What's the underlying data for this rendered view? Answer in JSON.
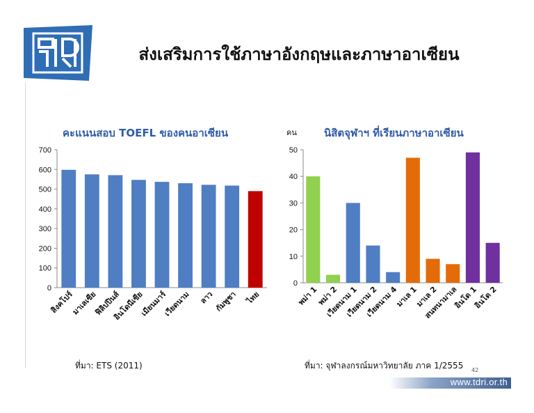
{
  "slide": {
    "title": "ส่งเสริมการใช้ภาษาอังกฤษและภาษาอาเซียน",
    "page_number": "42",
    "footer_url": "www.tdri.or.th",
    "logo_icon": "tdri-logo-icon"
  },
  "colors": {
    "blue": "#4f7ec2",
    "red": "#c00000",
    "green": "#92d050",
    "orange": "#e36c09",
    "purple": "#7030a0",
    "title_blue": "#2e5ba8"
  },
  "chart_data": [
    {
      "type": "bar",
      "title": "คะแนนสอบ TOEFL ของคนอาเซียน",
      "categories": [
        "สิงคโปร์",
        "มาเลเซีย",
        "ฟิลิปปินส์",
        "อินโดนีเซีย",
        "เมียนมาร์",
        "เวียดนาม",
        "ลาว",
        "กัมพูชา",
        "ไทย"
      ],
      "values": [
        598,
        575,
        571,
        547,
        537,
        530,
        522,
        518,
        490
      ],
      "bar_colors": [
        "blue",
        "blue",
        "blue",
        "blue",
        "blue",
        "blue",
        "blue",
        "blue",
        "red"
      ],
      "ylim": [
        0,
        700
      ],
      "yticks": [
        0,
        100,
        200,
        300,
        400,
        500,
        600,
        700
      ],
      "grid": false,
      "source": "ที่มา: ETS  (2011)"
    },
    {
      "type": "bar",
      "title": "นิสิตจุฬาฯ ที่เรียนภาษาอาเซียน",
      "ylabel": "คน",
      "categories": [
        "พม่า 1",
        "พม่า 2",
        "เวียดนาม 1",
        "เวียดนาม 2",
        "เวียดนาม 4",
        "มาเล 1",
        "มาเล 2",
        "สนทนามาเล",
        "อินโด 1",
        "อินโด 2"
      ],
      "values": [
        40,
        3,
        30,
        14,
        4,
        47,
        9,
        7,
        49,
        15
      ],
      "bar_colors": [
        "green",
        "green",
        "blue",
        "blue",
        "blue",
        "orange",
        "orange",
        "orange",
        "purple",
        "purple"
      ],
      "ylim": [
        0,
        50
      ],
      "yticks": [
        0,
        10,
        20,
        30,
        40,
        50
      ],
      "grid": false,
      "source": "ที่มา: จุฬาลงกรณ์มหาวิทยาลัย ภาค 1/2555"
    }
  ]
}
